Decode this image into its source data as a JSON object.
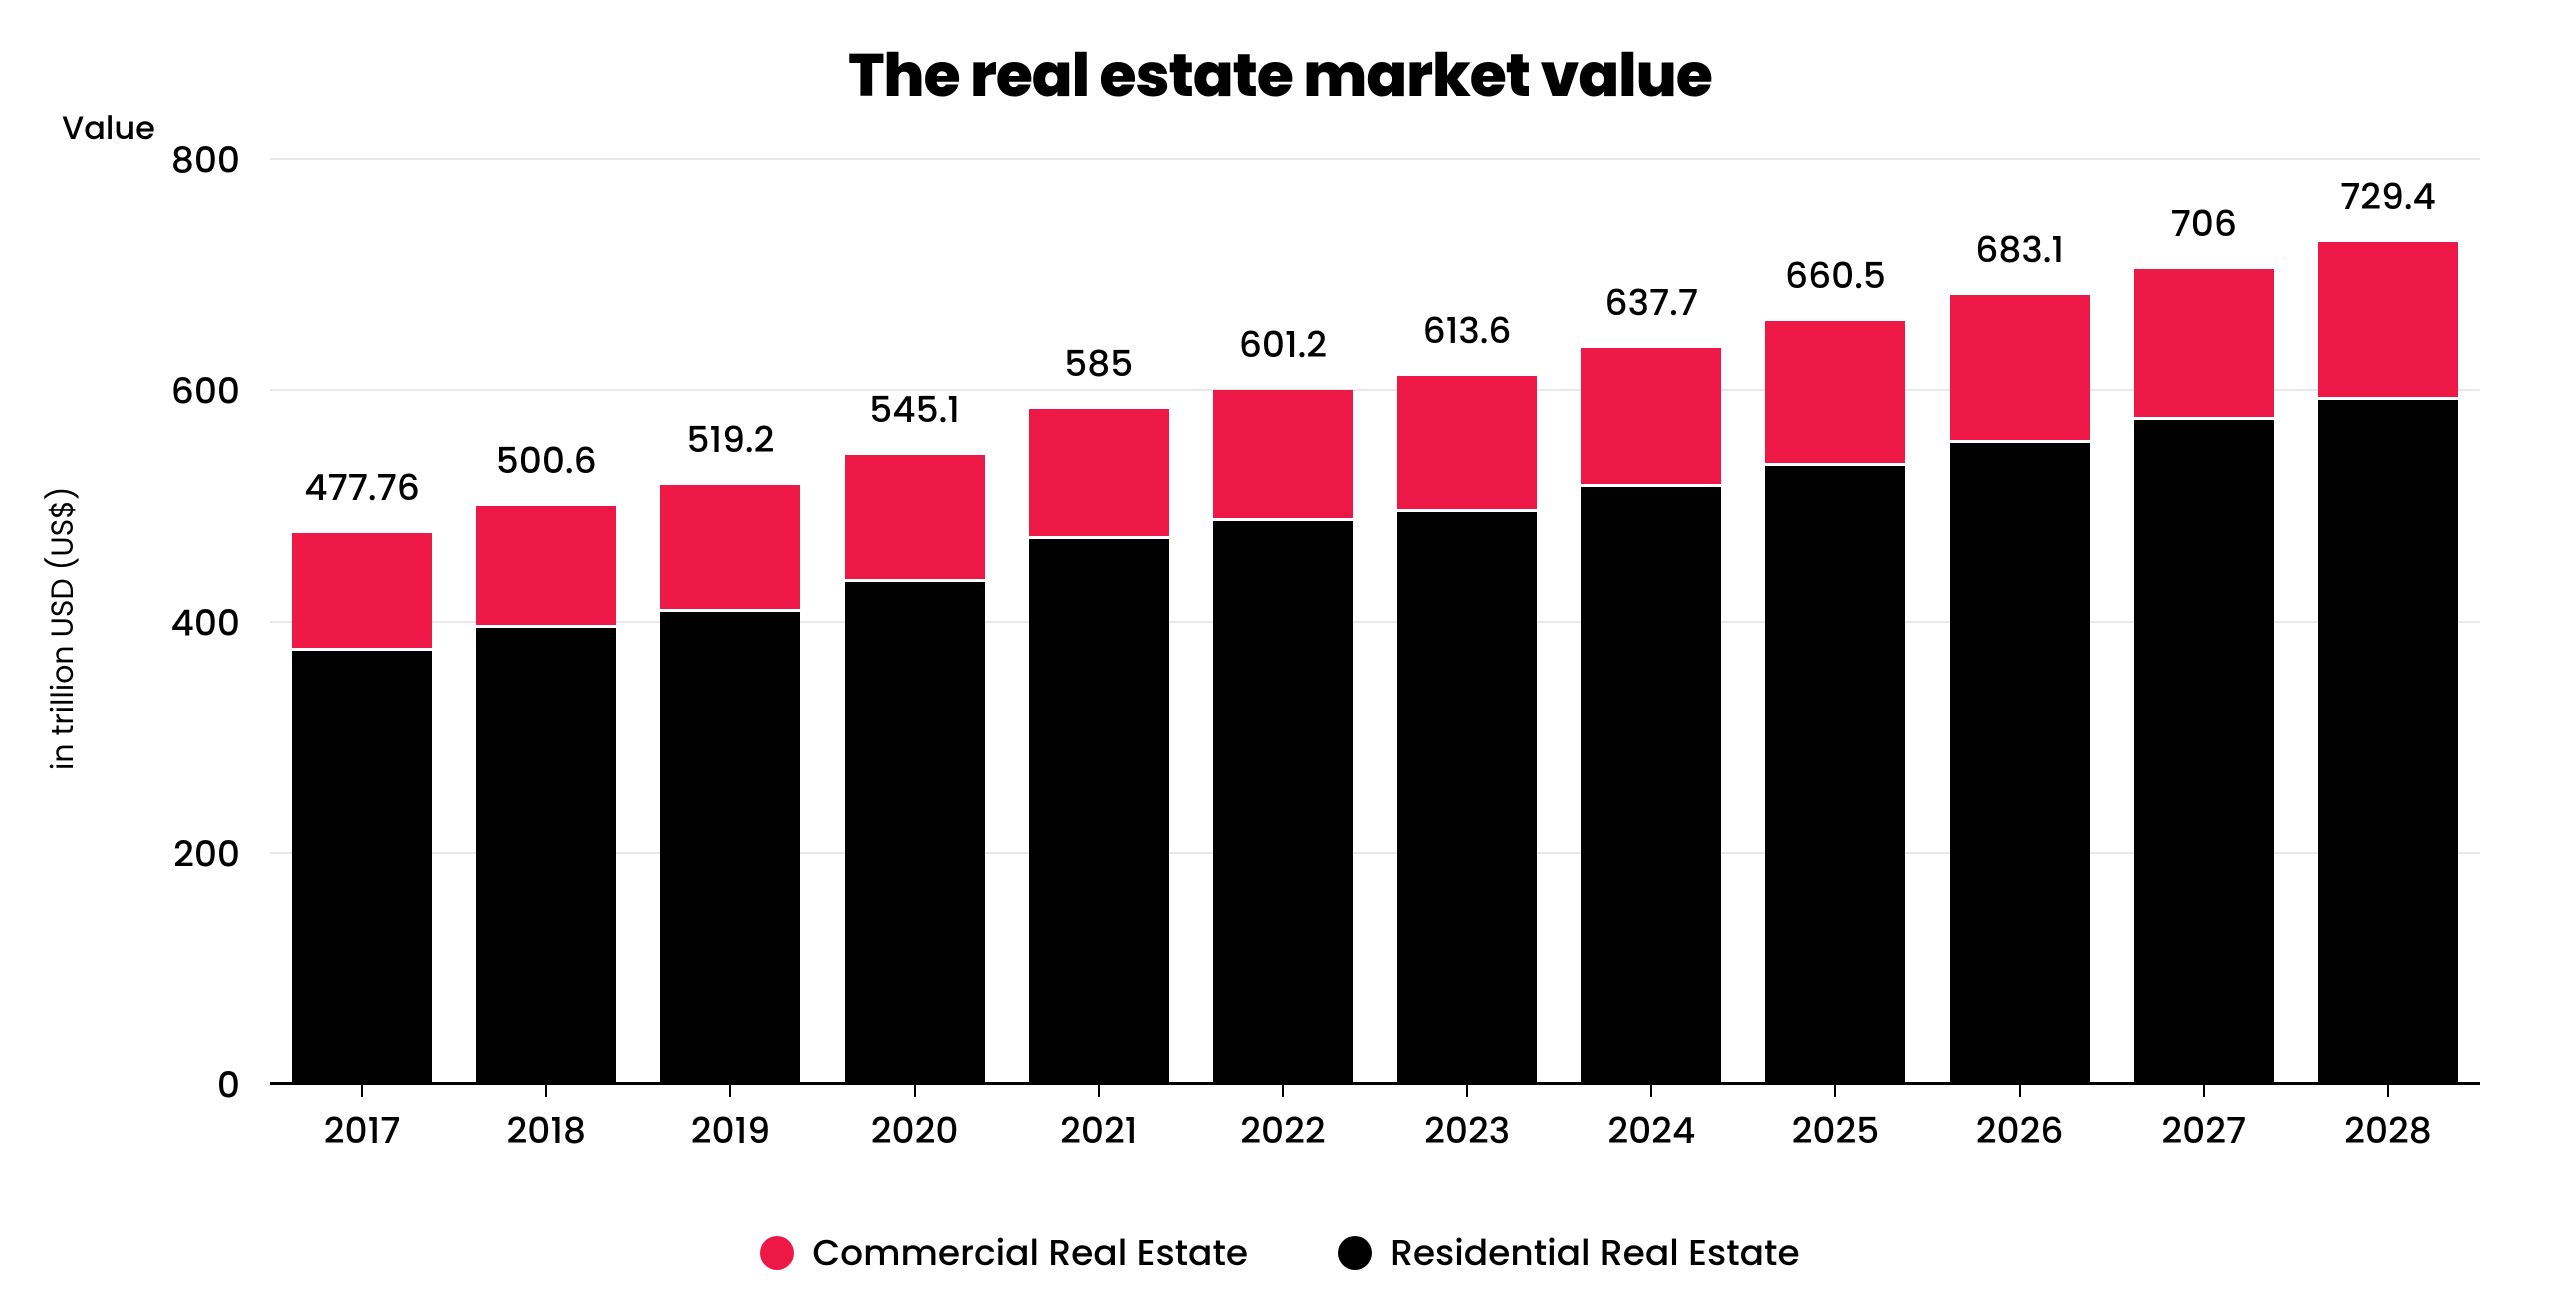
{
  "chart": {
    "type": "stacked-bar",
    "title": "The real estate market value",
    "y_title": "Value",
    "y_axis_label": "in trillion USD (US$)",
    "background_color": "#ffffff",
    "grid_color": "#e8e8e8",
    "baseline_color": "#000000",
    "text_color": "#000000",
    "title_fontsize": 60,
    "tick_fontsize": 36,
    "label_fontsize": 30,
    "y": {
      "min": 0,
      "max": 800,
      "ticks": [
        0,
        200,
        400,
        600,
        800
      ]
    },
    "categories": [
      "2017",
      "2018",
      "2019",
      "2020",
      "2021",
      "2022",
      "2023",
      "2024",
      "2025",
      "2026",
      "2027",
      "2028"
    ],
    "series": [
      {
        "name": "Residential Real Estate",
        "color": "#000000",
        "values": [
          378,
          398,
          412,
          438,
          475,
          490,
          498,
          520,
          538,
          558,
          578,
          595
        ]
      },
      {
        "name": "Commercial Real Estate",
        "color": "#ed1846",
        "values": [
          99.76,
          102.6,
          107.2,
          107.1,
          110,
          111.2,
          115.6,
          117.7,
          122.5,
          125.1,
          128,
          134.4
        ]
      }
    ],
    "totals": [
      "477.76",
      "500.6",
      "519.2",
      "545.1",
      "585",
      "601.2",
      "613.6",
      "637.7",
      "660.5",
      "683.1",
      "706",
      "729.4"
    ],
    "legend": [
      {
        "label": "Commercial Real Estate",
        "color": "#ed1846"
      },
      {
        "label": "Residential Real Estate",
        "color": "#000000"
      }
    ],
    "bar_width_ratio": 0.76
  }
}
